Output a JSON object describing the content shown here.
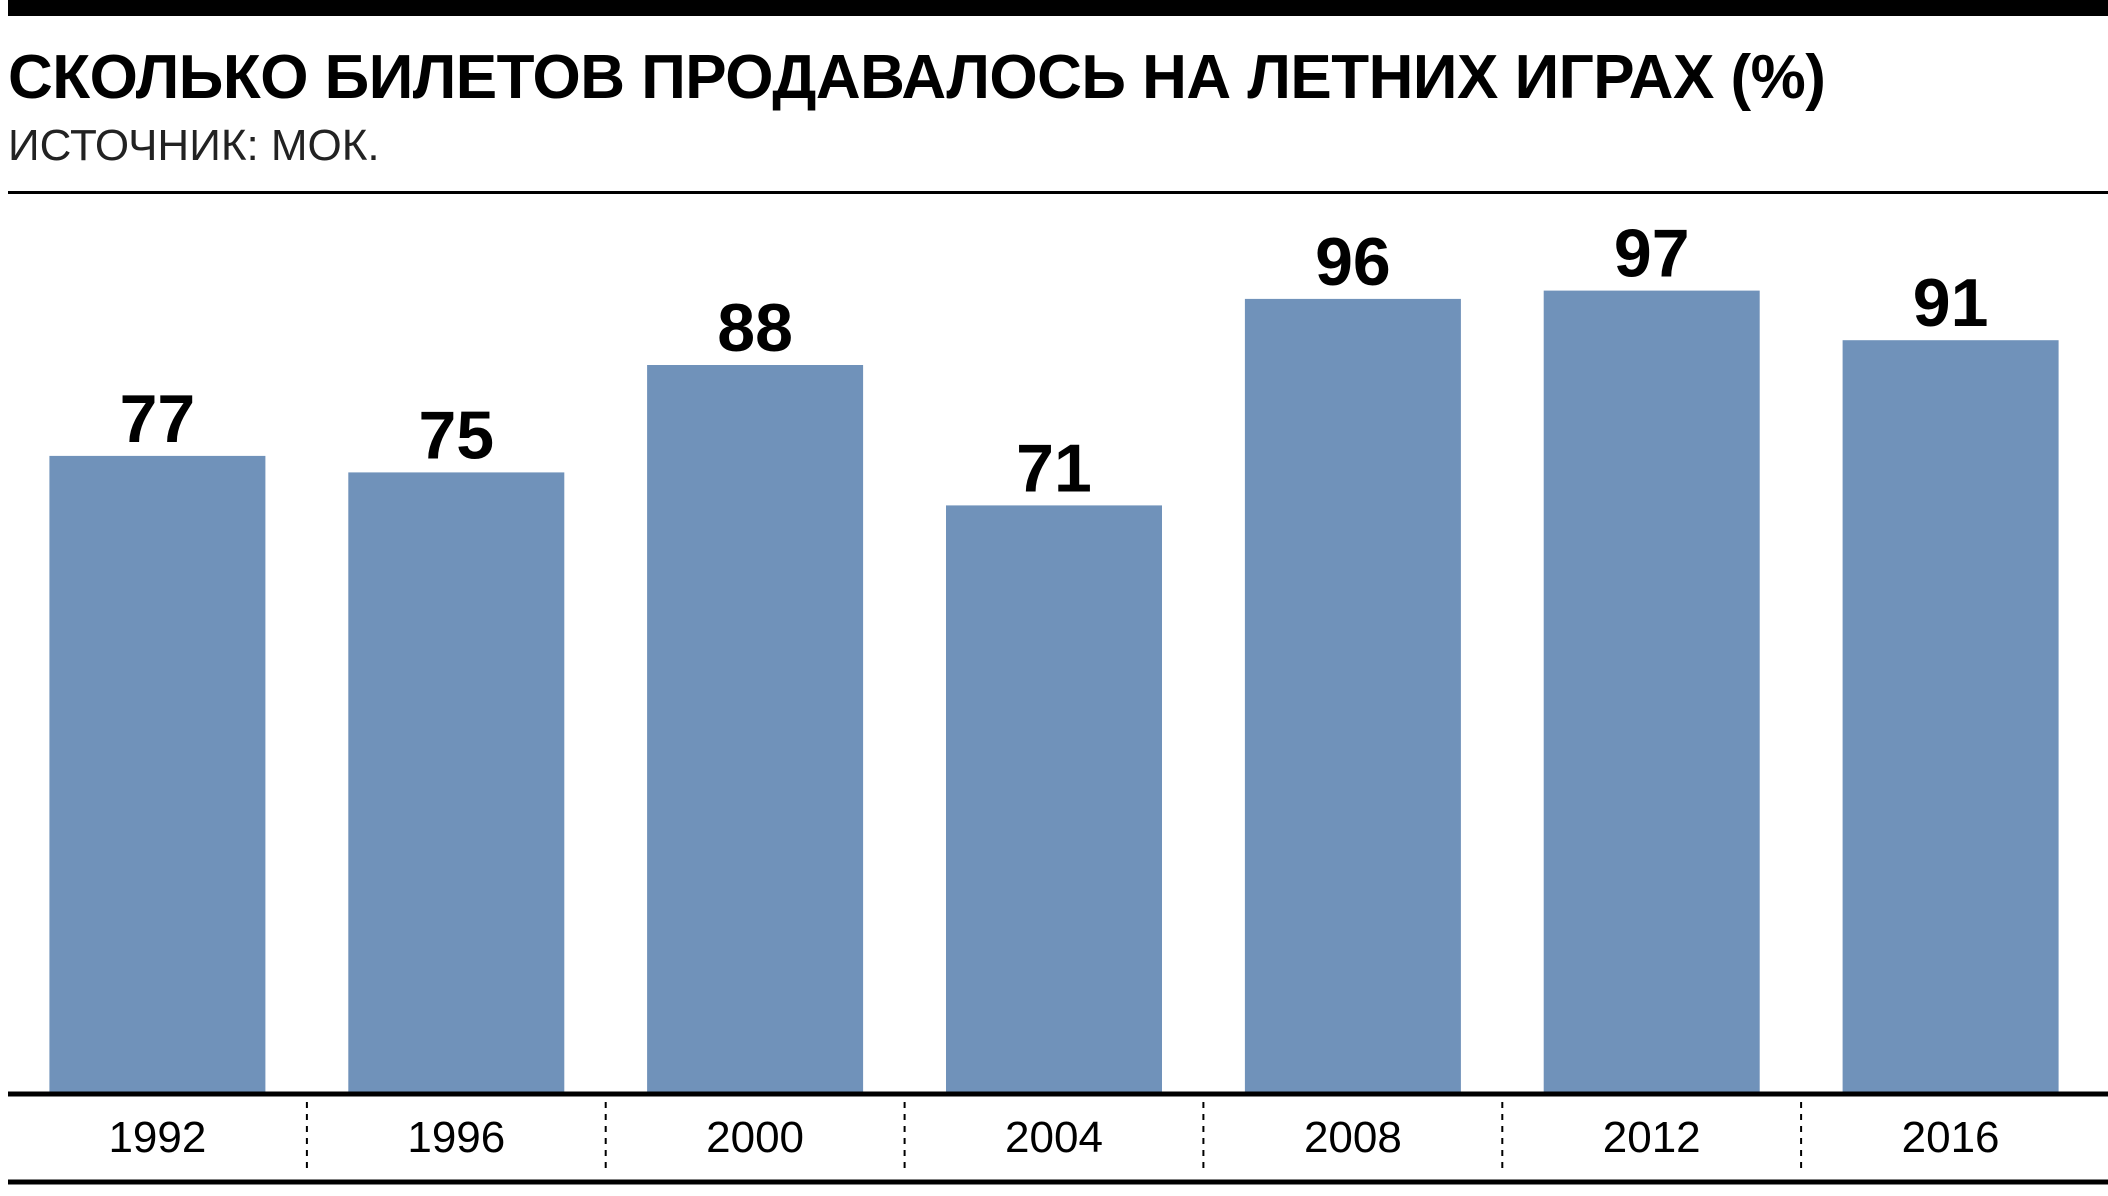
{
  "header": {
    "title": "СКОЛЬКО БИЛЕТОВ ПРОДАВАЛОСЬ НА ЛЕТНИХ ИГРАХ (%)",
    "source": "ИСТОЧНИК: МОК."
  },
  "colors": {
    "bar": "#7092BA",
    "text": "#000000"
  },
  "chart_data": {
    "type": "bar",
    "title": "СКОЛЬКО БИЛЕТОВ ПРОДАВАЛОСЬ НА ЛЕТНИХ ИГРАХ (%)",
    "subtitle": "ИСТОЧНИК: МОК.",
    "categories": [
      "1992",
      "1996",
      "2000",
      "2004",
      "2008",
      "2012",
      "2016"
    ],
    "values": [
      77,
      75,
      88,
      71,
      96,
      97,
      91
    ],
    "data_labels": [
      "77",
      "75",
      "88",
      "71",
      "96",
      "97",
      "91"
    ],
    "xlabel": "",
    "ylabel": "",
    "ylim": [
      0,
      107
    ],
    "grid": false,
    "legend": "none"
  }
}
